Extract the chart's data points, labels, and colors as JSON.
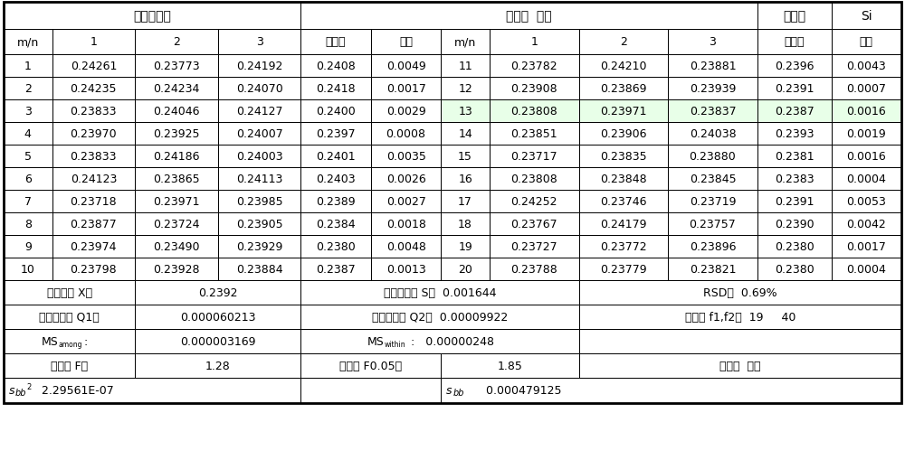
{
  "header_row": [
    "m/n",
    "1",
    "2",
    "3",
    "平均值",
    "极差",
    "m/n",
    "1",
    "2",
    "3",
    "平均值",
    "极差"
  ],
  "data_rows": [
    [
      "1",
      "0.24261",
      "0.23773",
      "0.24192",
      "0.2408",
      "0.0049",
      "11",
      "0.23782",
      "0.24210",
      "0.23881",
      "0.2396",
      "0.0043"
    ],
    [
      "2",
      "0.24235",
      "0.24234",
      "0.24070",
      "0.2418",
      "0.0017",
      "12",
      "0.23908",
      "0.23869",
      "0.23939",
      "0.2391",
      "0.0007"
    ],
    [
      "3",
      "0.23833",
      "0.24046",
      "0.24127",
      "0.2400",
      "0.0029",
      "13",
      "0.23808",
      "0.23971",
      "0.23837",
      "0.2387",
      "0.0016"
    ],
    [
      "4",
      "0.23970",
      "0.23925",
      "0.24007",
      "0.2397",
      "0.0008",
      "14",
      "0.23851",
      "0.23906",
      "0.24038",
      "0.2393",
      "0.0019"
    ],
    [
      "5",
      "0.23833",
      "0.24186",
      "0.24003",
      "0.2401",
      "0.0035",
      "15",
      "0.23717",
      "0.23835",
      "0.23880",
      "0.2381",
      "0.0016"
    ],
    [
      "6",
      "0.24123",
      "0.23865",
      "0.24113",
      "0.2403",
      "0.0026",
      "16",
      "0.23808",
      "0.23848",
      "0.23845",
      "0.2383",
      "0.0004"
    ],
    [
      "7",
      "0.23718",
      "0.23971",
      "0.23985",
      "0.2389",
      "0.0027",
      "17",
      "0.24252",
      "0.23746",
      "0.23719",
      "0.2391",
      "0.0053"
    ],
    [
      "8",
      "0.23877",
      "0.23724",
      "0.23905",
      "0.2384",
      "0.0018",
      "18",
      "0.23767",
      "0.24179",
      "0.23757",
      "0.2390",
      "0.0042"
    ],
    [
      "9",
      "0.23974",
      "0.23490",
      "0.23929",
      "0.2380",
      "0.0048",
      "19",
      "0.23727",
      "0.23772",
      "0.23896",
      "0.2380",
      "0.0017"
    ],
    [
      "10",
      "0.23798",
      "0.23928",
      "0.23884",
      "0.2387",
      "0.0013",
      "20",
      "0.23788",
      "0.23779",
      "0.23821",
      "0.2380",
      "0.0004"
    ]
  ],
  "col_widths_rel": [
    38,
    65,
    65,
    65,
    55,
    55,
    38,
    70,
    70,
    70,
    58,
    55
  ],
  "title_sec1": "均匀性检验",
  "title_sec2": "名称：  鈢铁",
  "title_sec3": "项目：",
  "title_sec4": "Si",
  "stat1_lbl": "总平均值 X：",
  "stat1_val": "0.2392",
  "stat1_mid": "总标准偏差 S：  0.001644",
  "stat1_rgt": "RSD：  0.69%",
  "stat2_lbl": "组间平方和 Q1：",
  "stat2_val": "0.000060213",
  "stat2_mid": "组内平方和 Q2：  0.00009922",
  "stat2_rgt": "自由度 f1,f2：  19     40",
  "stat3_val": "0.000003169",
  "stat3_mid_val": "0.00000248",
  "stat4_lbl": "统计量 F：",
  "stat4_val": "1.28",
  "stat4_mid_lbl": "临界值 F0.05：",
  "stat4_mid_val": "1.85",
  "stat4_rgt": "结论：  合格",
  "stat5_left_val": "2.29561E-07",
  "stat5_right_val": "0.000479125",
  "green_color": "#e8ffe8",
  "white": "#ffffff",
  "black": "#000000"
}
